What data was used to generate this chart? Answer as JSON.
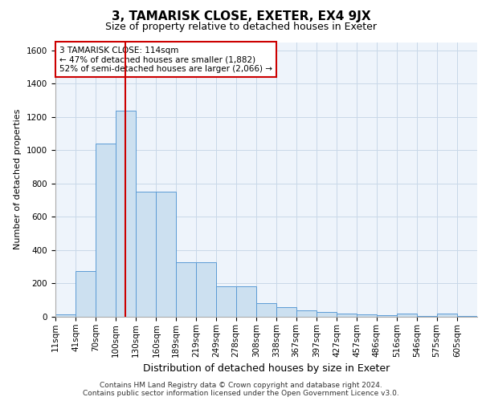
{
  "title_line1": "3, TAMARISK CLOSE, EXETER, EX4 9JX",
  "title_line2": "Size of property relative to detached houses in Exeter",
  "xlabel": "Distribution of detached houses by size in Exeter",
  "ylabel": "Number of detached properties",
  "footer_line1": "Contains HM Land Registry data © Crown copyright and database right 2024.",
  "footer_line2": "Contains public sector information licensed under the Open Government Licence v3.0.",
  "annotation_line1": "3 TAMARISK CLOSE: 114sqm",
  "annotation_line2": "← 47% of detached houses are smaller (1,882)",
  "annotation_line3": "52% of semi-detached houses are larger (2,066) →",
  "property_size": 114,
  "bar_categories": [
    "11sqm",
    "41sqm",
    "70sqm",
    "100sqm",
    "130sqm",
    "160sqm",
    "189sqm",
    "219sqm",
    "249sqm",
    "278sqm",
    "308sqm",
    "338sqm",
    "367sqm",
    "397sqm",
    "427sqm",
    "457sqm",
    "486sqm",
    "516sqm",
    "546sqm",
    "575sqm",
    "605sqm"
  ],
  "bar_left_edges": [
    11,
    41,
    70,
    100,
    130,
    160,
    189,
    219,
    249,
    278,
    308,
    338,
    367,
    397,
    427,
    457,
    486,
    516,
    546,
    575,
    605
  ],
  "bar_heights": [
    15,
    275,
    1040,
    1240,
    750,
    750,
    330,
    330,
    185,
    185,
    80,
    60,
    40,
    30,
    20,
    15,
    10,
    20,
    5,
    20,
    5
  ],
  "bar_color": "#cce0f0",
  "bar_edge_color": "#5b9bd5",
  "vline_x": 114,
  "vline_color": "#cc0000",
  "ylim": [
    0,
    1650
  ],
  "yticks": [
    0,
    200,
    400,
    600,
    800,
    1000,
    1200,
    1400,
    1600
  ],
  "grid_color": "#c8d8e8",
  "bg_color": "#eef4fb",
  "annotation_box_color": "#cc0000",
  "title1_fontsize": 11,
  "title2_fontsize": 9,
  "ylabel_fontsize": 8,
  "xlabel_fontsize": 9,
  "tick_fontsize": 7.5,
  "footer_fontsize": 6.5,
  "annotation_fontsize": 7.5
}
